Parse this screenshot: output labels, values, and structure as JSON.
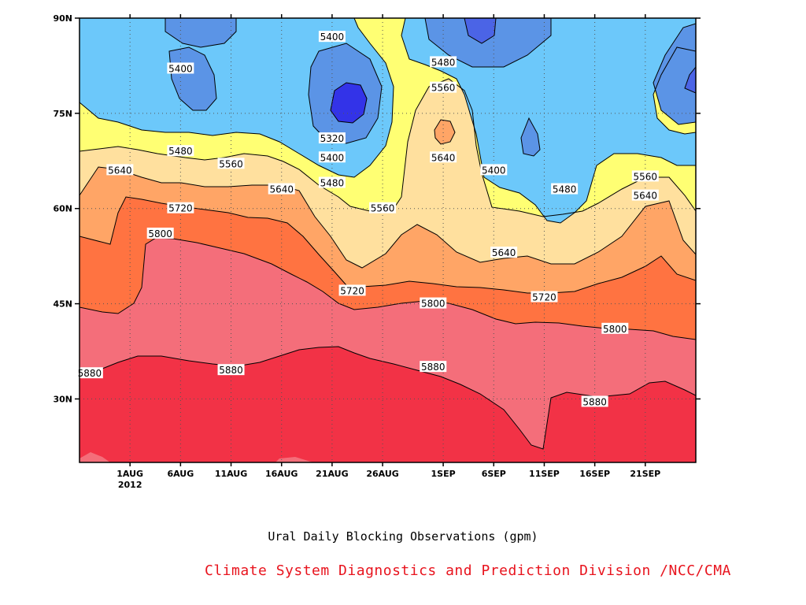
{
  "chart_data": {
    "type": "heatmap",
    "variant": "filled-contour (latitude-time Hovmoller)",
    "title": "Ural Daily Blocking Observations (gpm)",
    "xlabel": "",
    "ylabel": "",
    "x_ticks": [
      "1AUG",
      "6AUG",
      "11AUG",
      "16AUG",
      "21AUG",
      "26AUG",
      "1SEP",
      "6SEP",
      "11SEP",
      "16SEP",
      "21SEP"
    ],
    "x_year_label": "2012",
    "y_ticks": [
      "30N",
      "45N",
      "60N",
      "75N",
      "90N"
    ],
    "xlim": [
      "2012-07-27",
      "2012-09-26"
    ],
    "ylim": [
      20,
      90
    ],
    "grid": true,
    "contour_levels": [
      5320,
      5400,
      5480,
      5560,
      5640,
      5720,
      5800,
      5880
    ],
    "fill_colors": {
      "below_5320": "#3333e8",
      "5320_5400": "#4b64e6",
      "5400_5480": "#5b94e6",
      "5480_5560": "#6cc8fa",
      "5560_5640": "#ffff73",
      "5640_5720": "#ffe09e",
      "5720_5800": "#ffa566",
      "5800_5880": "#ff7341",
      "5880_5960": "#f46e7a",
      "above_5960": "#f23246"
    },
    "contour_labels": [
      {
        "text": "5400",
        "date": "2012-08-21",
        "lat": 87
      },
      {
        "text": "5400",
        "date": "2012-08-06",
        "lat": 82
      },
      {
        "text": "5480",
        "date": "2012-09-01",
        "lat": 83
      },
      {
        "text": "5560",
        "date": "2012-09-01",
        "lat": 79
      },
      {
        "text": "5320",
        "date": "2012-08-21",
        "lat": 71
      },
      {
        "text": "5480",
        "date": "2012-08-06",
        "lat": 69
      },
      {
        "text": "5640",
        "date": "2012-09-01",
        "lat": 68
      },
      {
        "text": "5400",
        "date": "2012-08-21",
        "lat": 68
      },
      {
        "text": "5560",
        "date": "2012-08-11",
        "lat": 67
      },
      {
        "text": "5400",
        "date": "2012-09-06",
        "lat": 66
      },
      {
        "text": "5640",
        "date": "2012-07-31",
        "lat": 66
      },
      {
        "text": "5480",
        "date": "2012-08-21",
        "lat": 64
      },
      {
        "text": "5560",
        "date": "2012-09-21",
        "lat": 65
      },
      {
        "text": "5480",
        "date": "2012-09-13",
        "lat": 63
      },
      {
        "text": "5640",
        "date": "2012-08-16",
        "lat": 63
      },
      {
        "text": "5640",
        "date": "2012-09-21",
        "lat": 62
      },
      {
        "text": "5560",
        "date": "2012-08-26",
        "lat": 60
      },
      {
        "text": "5720",
        "date": "2012-08-06",
        "lat": 60
      },
      {
        "text": "5800",
        "date": "2012-08-04",
        "lat": 56
      },
      {
        "text": "5640",
        "date": "2012-09-07",
        "lat": 53
      },
      {
        "text": "5720",
        "date": "2012-08-23",
        "lat": 47
      },
      {
        "text": "5720",
        "date": "2012-09-11",
        "lat": 46
      },
      {
        "text": "5800",
        "date": "2012-08-31",
        "lat": 45
      },
      {
        "text": "5800",
        "date": "2012-09-18",
        "lat": 41
      },
      {
        "text": "5880",
        "date": "2012-07-28",
        "lat": 34
      },
      {
        "text": "5880",
        "date": "2012-08-11",
        "lat": 34.5
      },
      {
        "text": "5880",
        "date": "2012-08-31",
        "lat": 35
      },
      {
        "text": "5880",
        "date": "2012-09-16",
        "lat": 29.5
      }
    ]
  },
  "credit": {
    "text": "Climate System Diagnostics and Prediction Division /NCC/CMA",
    "color": "#e8141e"
  }
}
